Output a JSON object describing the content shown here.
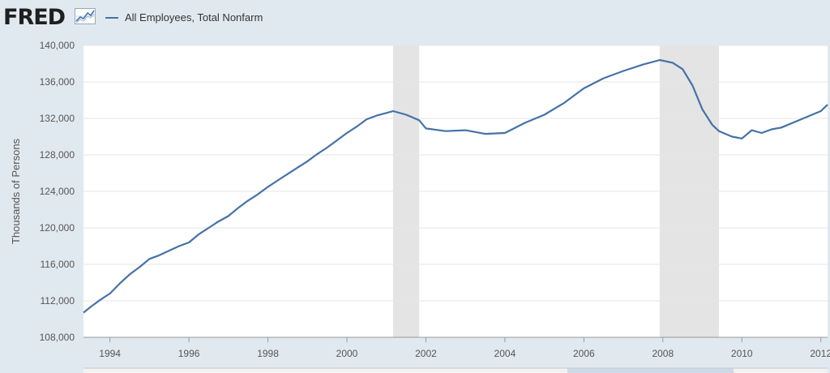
{
  "header": {
    "logo_text": "FRED",
    "logo_icon": "trend-chart-icon",
    "legend_label": "All Employees, Total Nonfarm"
  },
  "colors": {
    "series": "#4572a7",
    "recession": "#e4e4e4",
    "grid": "#e6e6e6",
    "background": "#e1e9f0",
    "plot": "#ffffff"
  },
  "chart_data": {
    "type": "line",
    "title": "",
    "xlabel": "",
    "ylabel": "Thousands of Persons",
    "xlim": [
      1993.33,
      2012.17
    ],
    "ylim": [
      108000,
      140000
    ],
    "yticks": [
      108000,
      112000,
      116000,
      120000,
      124000,
      128000,
      132000,
      136000,
      140000
    ],
    "ytick_labels": [
      "108,000",
      "112,000",
      "116,000",
      "120,000",
      "124,000",
      "128,000",
      "132,000",
      "136,000",
      "140,000"
    ],
    "xticks": [
      1994,
      1996,
      1998,
      2000,
      2002,
      2004,
      2006,
      2008,
      2010,
      2012
    ],
    "xtick_labels": [
      "1994",
      "1996",
      "1998",
      "2000",
      "2002",
      "2004",
      "2006",
      "2008",
      "2010",
      "2012"
    ],
    "grid": true,
    "legend": "top-left",
    "recessions": [
      [
        2001.17,
        2001.83
      ],
      [
        2007.92,
        2009.42
      ]
    ],
    "series": [
      {
        "name": "All Employees, Total Nonfarm",
        "x": [
          1993.33,
          1993.5,
          1993.75,
          1994.0,
          1994.25,
          1994.5,
          1994.75,
          1995.0,
          1995.25,
          1995.5,
          1995.75,
          1996.0,
          1996.25,
          1996.5,
          1996.75,
          1997.0,
          1997.25,
          1997.5,
          1997.75,
          1998.0,
          1998.25,
          1998.5,
          1998.75,
          1999.0,
          1999.25,
          1999.5,
          1999.75,
          2000.0,
          2000.25,
          2000.5,
          2000.75,
          2001.0,
          2001.17,
          2001.5,
          2001.83,
          2002.0,
          2002.5,
          2003.0,
          2003.5,
          2004.0,
          2004.5,
          2005.0,
          2005.5,
          2006.0,
          2006.5,
          2007.0,
          2007.5,
          2007.92,
          2008.25,
          2008.5,
          2008.75,
          2009.0,
          2009.25,
          2009.42,
          2009.75,
          2010.0,
          2010.25,
          2010.5,
          2010.75,
          2011.0,
          2011.5,
          2012.0,
          2012.17
        ],
        "values": [
          110700,
          111300,
          112100,
          112800,
          113900,
          114900,
          115700,
          116600,
          117000,
          117500,
          118000,
          118400,
          119300,
          120000,
          120700,
          121300,
          122200,
          123000,
          123700,
          124500,
          125200,
          125900,
          126600,
          127300,
          128100,
          128800,
          129600,
          130400,
          131100,
          131900,
          132300,
          132600,
          132800,
          132400,
          131800,
          130900,
          130600,
          130700,
          130300,
          130400,
          131500,
          132400,
          133700,
          135300,
          136400,
          137200,
          137900,
          138400,
          138100,
          137400,
          135600,
          133000,
          131300,
          130600,
          130000,
          129800,
          130700,
          130400,
          130800,
          131000,
          131900,
          132800,
          133500
        ]
      }
    ]
  }
}
